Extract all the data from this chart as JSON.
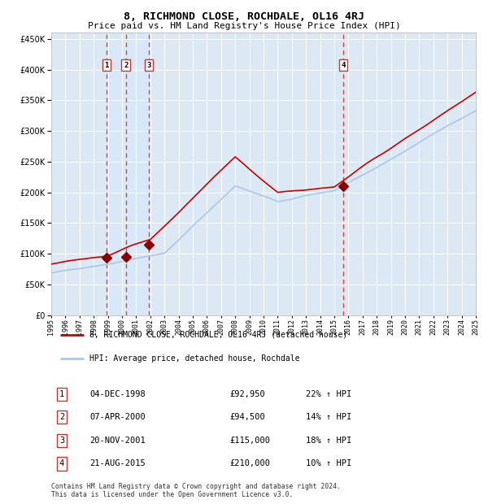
{
  "title": "8, RICHMOND CLOSE, ROCHDALE, OL16 4RJ",
  "subtitle": "Price paid vs. HM Land Registry's House Price Index (HPI)",
  "legend_line1": "8, RICHMOND CLOSE, ROCHDALE, OL16 4RJ (detached house)",
  "legend_line2": "HPI: Average price, detached house, Rochdale",
  "footer": "Contains HM Land Registry data © Crown copyright and database right 2024.\nThis data is licensed under the Open Government Licence v3.0.",
  "transactions": [
    {
      "num": 1,
      "date": "04-DEC-1998",
      "price": 92950,
      "pct": "22%",
      "dir": "↑"
    },
    {
      "num": 2,
      "date": "07-APR-2000",
      "price": 94500,
      "pct": "14%",
      "dir": "↑"
    },
    {
      "num": 3,
      "date": "20-NOV-2001",
      "price": 115000,
      "pct": "18%",
      "dir": "↑"
    },
    {
      "num": 4,
      "date": "21-AUG-2015",
      "price": 210000,
      "pct": "10%",
      "dir": "↑"
    }
  ],
  "hpi_color": "#aec6e8",
  "price_color": "#cc0000",
  "dot_color": "#880000",
  "vline_color": "#dd4444",
  "shade_color": "#d8e8f8",
  "plot_bg": "#dce8f4",
  "grid_color": "#ffffff",
  "ylim": [
    0,
    460000
  ],
  "yticks": [
    0,
    50000,
    100000,
    150000,
    200000,
    250000,
    300000,
    350000,
    400000,
    450000
  ],
  "year_start": 1995,
  "year_end": 2025,
  "transaction_years": [
    1998.92,
    2000.27,
    2001.89,
    2015.64
  ]
}
